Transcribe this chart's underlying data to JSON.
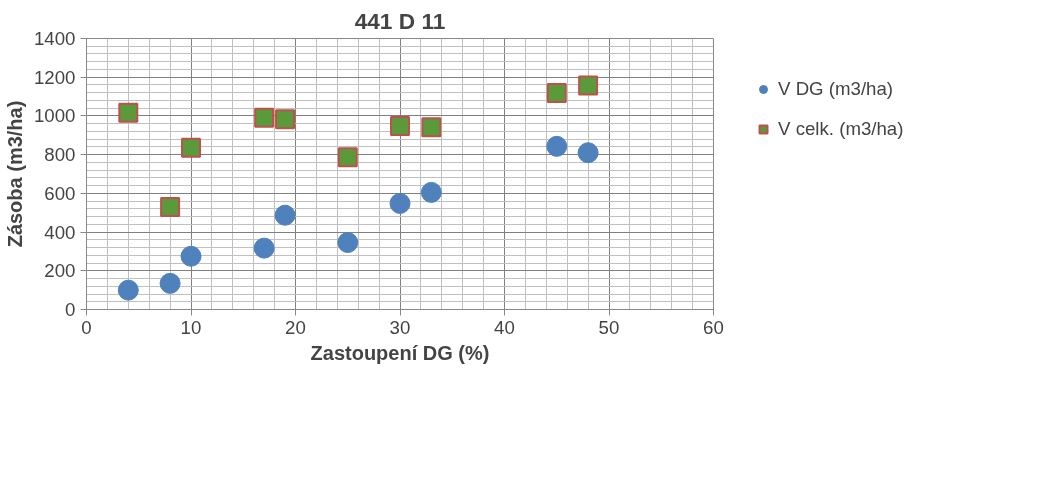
{
  "chart_data": {
    "type": "scatter",
    "title": "441 D 11",
    "xlabel": "Zastoupení DG (%)",
    "ylabel": "Zásoba (m3/ha)",
    "x": [
      4,
      8,
      10,
      17,
      19,
      25,
      30,
      33,
      45,
      48
    ],
    "series": [
      {
        "name": "V DG (m3/ha)",
        "color": "#4f81bd",
        "marker": "circle",
        "values": [
          100,
          135,
          275,
          317,
          487,
          346,
          548,
          605,
          843,
          810
        ]
      },
      {
        "name": "V celk. (m3/ha)",
        "color": "#5a9a3a",
        "marker": "square",
        "values": [
          1016,
          529,
          835,
          990,
          983,
          786,
          948,
          941,
          1118,
          1157
        ]
      }
    ],
    "xlim": [
      0,
      60
    ],
    "xticks": [
      0,
      10,
      20,
      30,
      40,
      50,
      60
    ],
    "ylim": [
      0,
      1400
    ],
    "yticks": [
      0,
      200,
      400,
      600,
      800,
      1000,
      1200,
      1400
    ],
    "grid": true,
    "legend": "right"
  }
}
